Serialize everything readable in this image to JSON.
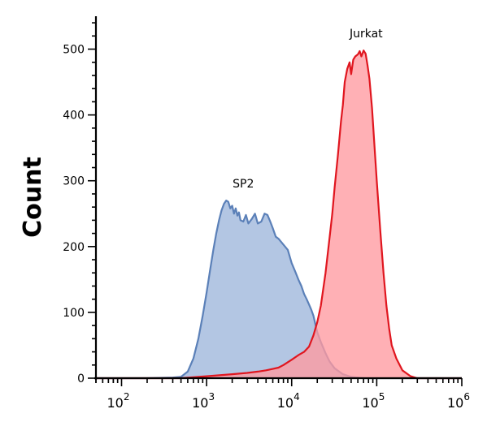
{
  "chart_data": {
    "type": "area",
    "title": "",
    "xlabel": "",
    "ylabel": "Count",
    "x_scale": "log",
    "xlim": [
      50,
      1000000
    ],
    "ylim": [
      0,
      550
    ],
    "grid": false,
    "x_tick_labels": [
      {
        "base": "10",
        "exp": "2",
        "value": 100
      },
      {
        "base": "10",
        "exp": "3",
        "value": 1000
      },
      {
        "base": "10",
        "exp": "4",
        "value": 10000
      },
      {
        "base": "10",
        "exp": "5",
        "value": 100000
      },
      {
        "base": "10",
        "exp": "6",
        "value": 1000000
      }
    ],
    "y_ticks": [
      {
        "value": 0,
        "label": "0"
      },
      {
        "value": 100,
        "label": "100"
      },
      {
        "value": 200,
        "label": "200"
      },
      {
        "value": 300,
        "label": "300"
      },
      {
        "value": 400,
        "label": "400"
      },
      {
        "value": 500,
        "label": "500"
      }
    ],
    "annotations": [
      {
        "text": "SP2",
        "x": 2700,
        "y": 290
      },
      {
        "text": "Jurkat",
        "x": 75000,
        "y": 518
      }
    ],
    "series": [
      {
        "name": "SP2",
        "fill": "#b3c6e3",
        "stroke": "#5b80b8",
        "points": [
          [
            50,
            0
          ],
          [
            200,
            0
          ],
          [
            400,
            1
          ],
          [
            500,
            2
          ],
          [
            600,
            10
          ],
          [
            700,
            30
          ],
          [
            800,
            60
          ],
          [
            900,
            95
          ],
          [
            1000,
            130
          ],
          [
            1100,
            165
          ],
          [
            1200,
            195
          ],
          [
            1300,
            220
          ],
          [
            1400,
            240
          ],
          [
            1500,
            255
          ],
          [
            1600,
            265
          ],
          [
            1700,
            270
          ],
          [
            1800,
            268
          ],
          [
            1900,
            258
          ],
          [
            2000,
            262
          ],
          [
            2100,
            250
          ],
          [
            2200,
            258
          ],
          [
            2300,
            247
          ],
          [
            2400,
            252
          ],
          [
            2500,
            240
          ],
          [
            2700,
            238
          ],
          [
            2900,
            248
          ],
          [
            3100,
            235
          ],
          [
            3400,
            242
          ],
          [
            3700,
            250
          ],
          [
            4000,
            235
          ],
          [
            4400,
            238
          ],
          [
            4800,
            250
          ],
          [
            5200,
            248
          ],
          [
            5600,
            238
          ],
          [
            6000,
            228
          ],
          [
            6500,
            215
          ],
          [
            7000,
            212
          ],
          [
            8000,
            203
          ],
          [
            9000,
            195
          ],
          [
            10000,
            175
          ],
          [
            11000,
            162
          ],
          [
            12000,
            150
          ],
          [
            13000,
            140
          ],
          [
            14000,
            128
          ],
          [
            15000,
            120
          ],
          [
            16000,
            112
          ],
          [
            17000,
            104
          ],
          [
            18000,
            95
          ],
          [
            19000,
            82
          ],
          [
            20000,
            70
          ],
          [
            22000,
            55
          ],
          [
            25000,
            38
          ],
          [
            28000,
            25
          ],
          [
            32000,
            15
          ],
          [
            40000,
            6
          ],
          [
            50000,
            2
          ],
          [
            70000,
            0
          ],
          [
            1000000,
            0
          ]
        ]
      },
      {
        "name": "Jurkat",
        "fill": "#ff9aa0",
        "stroke": "#e0161f",
        "points": [
          [
            50,
            0
          ],
          [
            500,
            0
          ],
          [
            1000,
            3
          ],
          [
            2000,
            6
          ],
          [
            3000,
            8
          ],
          [
            4000,
            10
          ],
          [
            5000,
            12
          ],
          [
            6000,
            14
          ],
          [
            7000,
            16
          ],
          [
            8000,
            20
          ],
          [
            10000,
            28
          ],
          [
            12000,
            35
          ],
          [
            14000,
            40
          ],
          [
            16000,
            48
          ],
          [
            18000,
            65
          ],
          [
            20000,
            85
          ],
          [
            22000,
            110
          ],
          [
            25000,
            160
          ],
          [
            28000,
            215
          ],
          [
            30000,
            250
          ],
          [
            32000,
            290
          ],
          [
            35000,
            340
          ],
          [
            38000,
            390
          ],
          [
            40000,
            415
          ],
          [
            42000,
            450
          ],
          [
            45000,
            470
          ],
          [
            48000,
            480
          ],
          [
            50000,
            462
          ],
          [
            53000,
            484
          ],
          [
            56000,
            489
          ],
          [
            60000,
            492
          ],
          [
            63000,
            497
          ],
          [
            66000,
            489
          ],
          [
            70000,
            498
          ],
          [
            74000,
            493
          ],
          [
            78000,
            475
          ],
          [
            82000,
            455
          ],
          [
            88000,
            410
          ],
          [
            95000,
            345
          ],
          [
            100000,
            300
          ],
          [
            110000,
            225
          ],
          [
            120000,
            160
          ],
          [
            130000,
            110
          ],
          [
            140000,
            75
          ],
          [
            150000,
            50
          ],
          [
            170000,
            30
          ],
          [
            200000,
            12
          ],
          [
            250000,
            3
          ],
          [
            300000,
            0
          ],
          [
            1000000,
            0
          ]
        ]
      }
    ]
  }
}
